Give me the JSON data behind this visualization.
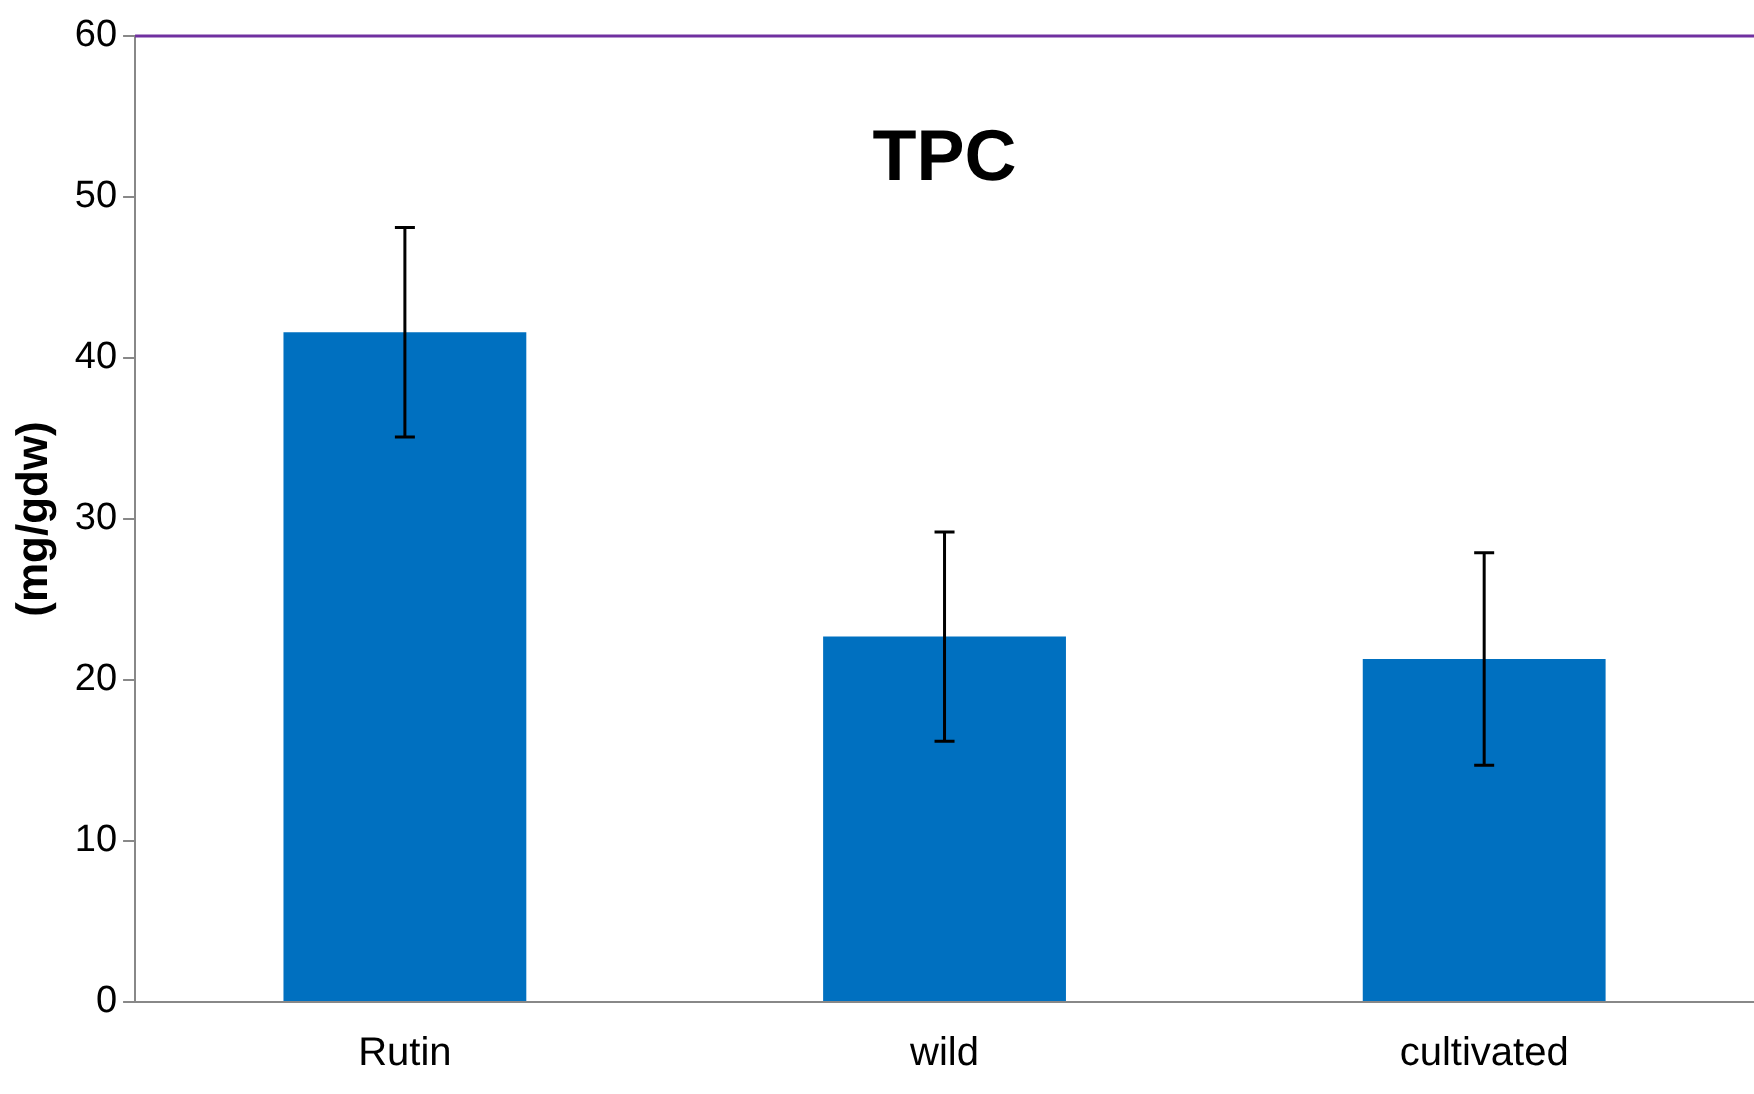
{
  "chart_data": {
    "type": "bar",
    "title": "TPC",
    "ylabel": "(mg/gdw)",
    "categories": [
      "Rutin",
      "wild",
      "cultivated"
    ],
    "values": [
      41.6,
      22.7,
      21.3
    ],
    "errors": [
      6.5,
      6.5,
      6.6
    ],
    "color": "#0070c0",
    "ylim": [
      0,
      60
    ],
    "yticks": [
      0,
      10,
      20,
      30,
      40,
      50,
      60
    ],
    "ref_lines": [
      {
        "axis": "y",
        "value": 60,
        "color": "#7030a0"
      }
    ],
    "grid": false,
    "legend": false
  }
}
